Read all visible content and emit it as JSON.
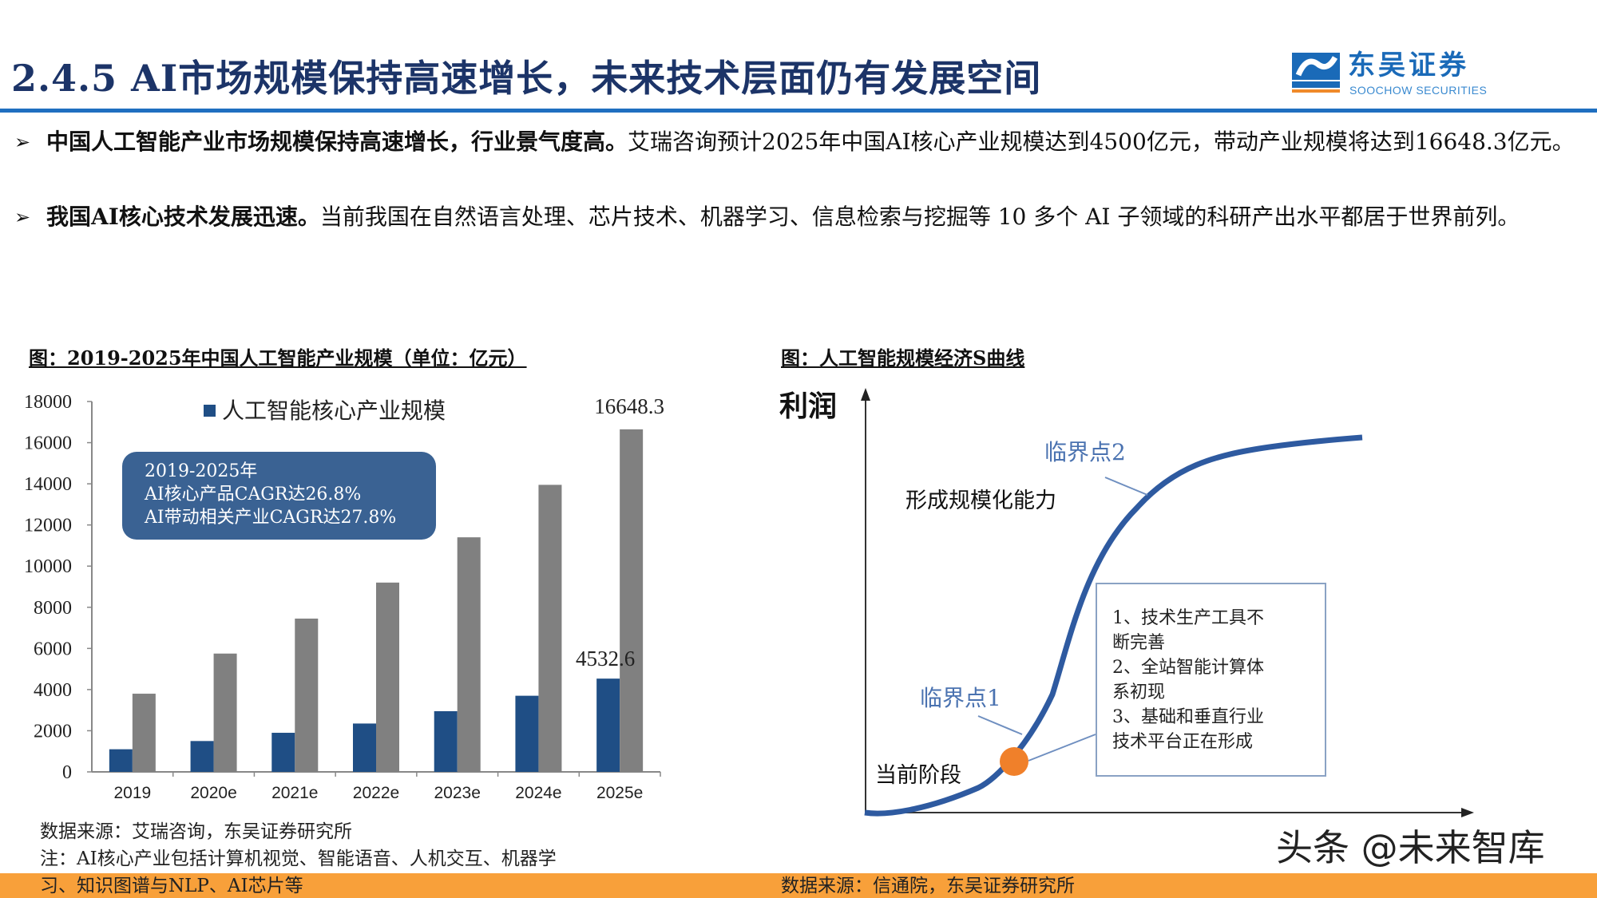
{
  "header": {
    "title": "2.4.5 AI市场规模保持高速增长，未来技术层面仍有发展空间",
    "logo_cn": "东吴证券",
    "logo_en": "SOOCHOW SECURITIES",
    "logo_mark": "SCS"
  },
  "bullets": [
    {
      "bold": "中国人工智能产业市场规模保持高速增长，行业景气度高。",
      "text": "艾瑞咨询预计2025年中国AI核心产业规模达到4500亿元，带动产业规模将达到16648.3亿元。"
    },
    {
      "bold": "我国AI核心技术发展迅速。",
      "text": "当前我国在自然语言处理、芯片技术、机器学习、信息检索与挖掘等 10 多个 AI 子领域的科研产出水平都居于世界前列。"
    }
  ],
  "left_figure": {
    "title": "图：2019-2025年中国人工智能产业规模（单位：亿元）",
    "cagr_box": [
      "2019-2025年",
      "AI核心产品CAGR达26.8%",
      "AI带动相关产业CAGR达27.8%"
    ],
    "source": "数据来源：艾瑞咨询，东吴证券研究所",
    "note_line1": "注：AI核心产业包括计算机视觉、智能语音、人机交互、机器学",
    "note_line2": "习、知识图谱与NLP、AI芯片等"
  },
  "chart_data": {
    "type": "bar",
    "title": "",
    "categories": [
      "2019",
      "2020e",
      "2021e",
      "2022e",
      "2023e",
      "2024e",
      "2025e"
    ],
    "series": [
      {
        "name": "人工智能核心产业规模",
        "color": "#1f4e85",
        "values": [
          1100,
          1500,
          1900,
          2350,
          2950,
          3700,
          4532.6
        ]
      },
      {
        "name": "",
        "color": "#808080",
        "values": [
          3800,
          5750,
          7450,
          9200,
          11400,
          13950,
          16648.3
        ]
      }
    ],
    "yticks": [
      "0",
      "2000",
      "4000",
      "6000",
      "8000",
      "10000",
      "12000",
      "14000",
      "16000",
      "18000"
    ],
    "ylim": [
      0,
      18000
    ],
    "data_labels": [
      "4532.6",
      "16648.3"
    ],
    "legend": "top-center",
    "grid": false
  },
  "right_figure": {
    "title": "图：人工智能规模经济S曲线",
    "y_axis_label": "利润",
    "labels": {
      "critical_point_2": "临界点2",
      "scale_capability": "形成规模化能力",
      "critical_point_1": "临界点1",
      "current_stage": "当前阶段"
    },
    "box_lines": [
      "1、技术生产工具不",
      "断完善",
      "2、全站智能计算体",
      "系初现",
      "3、基础和垂直行业",
      "技术平台正在形成"
    ],
    "source": "数据来源：信通院，东吴证券研究所",
    "colors": {
      "curve": "#2e5aa0",
      "dot": "#f0802a",
      "label": "#4a72b0"
    }
  },
  "watermark": "头条 @未来智库"
}
